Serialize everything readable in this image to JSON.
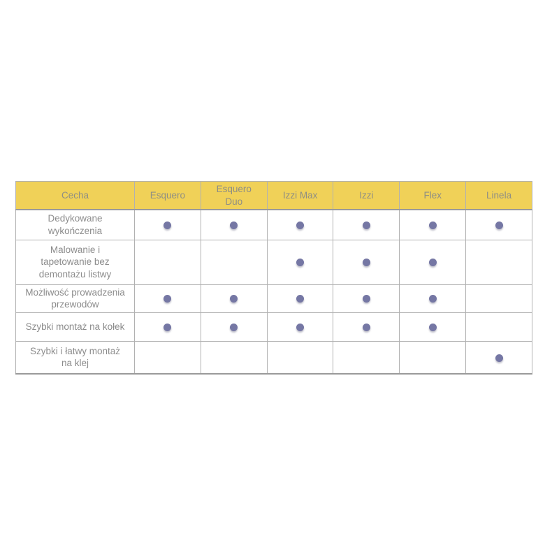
{
  "table": {
    "columns": [
      {
        "label": "Cecha"
      },
      {
        "label": "Esquero"
      },
      {
        "label": "Esquero\nDuo"
      },
      {
        "label": "Izzi Max"
      },
      {
        "label": "Izzi"
      },
      {
        "label": "Flex"
      },
      {
        "label": "Linela"
      }
    ],
    "rows": [
      {
        "label": "Dedykowane\nwykończenia",
        "values": [
          true,
          true,
          true,
          true,
          true,
          true
        ]
      },
      {
        "label": "Malowanie i\ntapetowanie bez\ndemontażu listwy",
        "values": [
          false,
          false,
          true,
          true,
          true,
          false
        ]
      },
      {
        "label": "Możliwość prowadzenia\nprzewodów",
        "values": [
          true,
          true,
          true,
          true,
          true,
          false
        ]
      },
      {
        "label": "Szybki montaż na kołek",
        "values": [
          true,
          true,
          true,
          true,
          true,
          false
        ]
      },
      {
        "label": "Szybki i łatwy montaż\nna klej",
        "values": [
          false,
          false,
          false,
          false,
          false,
          true
        ]
      }
    ],
    "dot_meaning": "feature available",
    "colors": {
      "header_bg": "#F0D158",
      "header_text": "#8E8E84",
      "body_text": "#8C8C8C",
      "grid_border": "#B1B1B1",
      "outer_border": "#9A9A9A",
      "dot": "#7577A4",
      "page_bg": "#FFFFFF"
    }
  }
}
